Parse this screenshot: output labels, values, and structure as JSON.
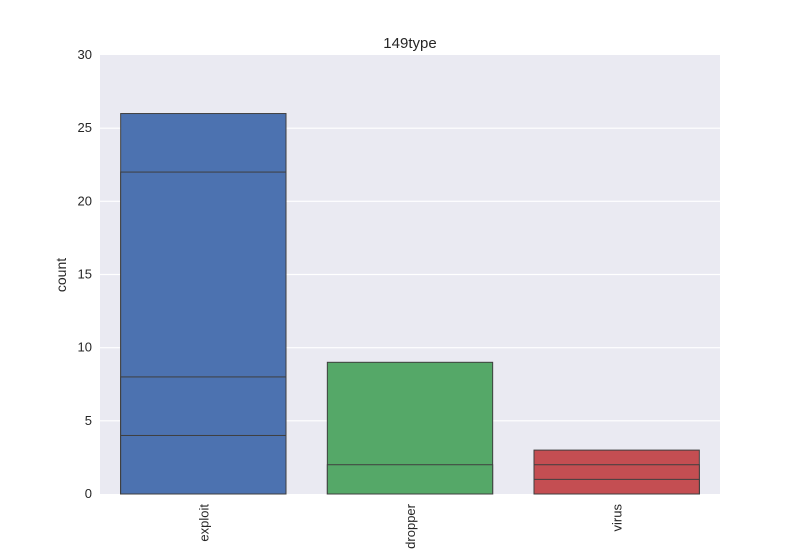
{
  "chart_data": {
    "type": "bar",
    "title": "149type",
    "xlabel": "",
    "ylabel": "count",
    "ylim": [
      0,
      30
    ],
    "yticks": [
      0,
      5,
      10,
      15,
      20,
      25,
      30
    ],
    "grid": true,
    "categories": [
      "exploit",
      "dropper",
      "virus"
    ],
    "bars": [
      {
        "category": "exploit",
        "segments": [
          26,
          22,
          8,
          4
        ],
        "color": "#4c72b0"
      },
      {
        "category": "dropper",
        "segments": [
          9,
          2
        ],
        "color": "#55a868"
      },
      {
        "category": "virus",
        "segments": [
          3,
          2,
          1
        ],
        "color": "#c44e52"
      }
    ],
    "colors": {
      "plot_background": "#eaeaf2",
      "grid": "#ffffff",
      "edge": "#3f3f3f"
    }
  }
}
